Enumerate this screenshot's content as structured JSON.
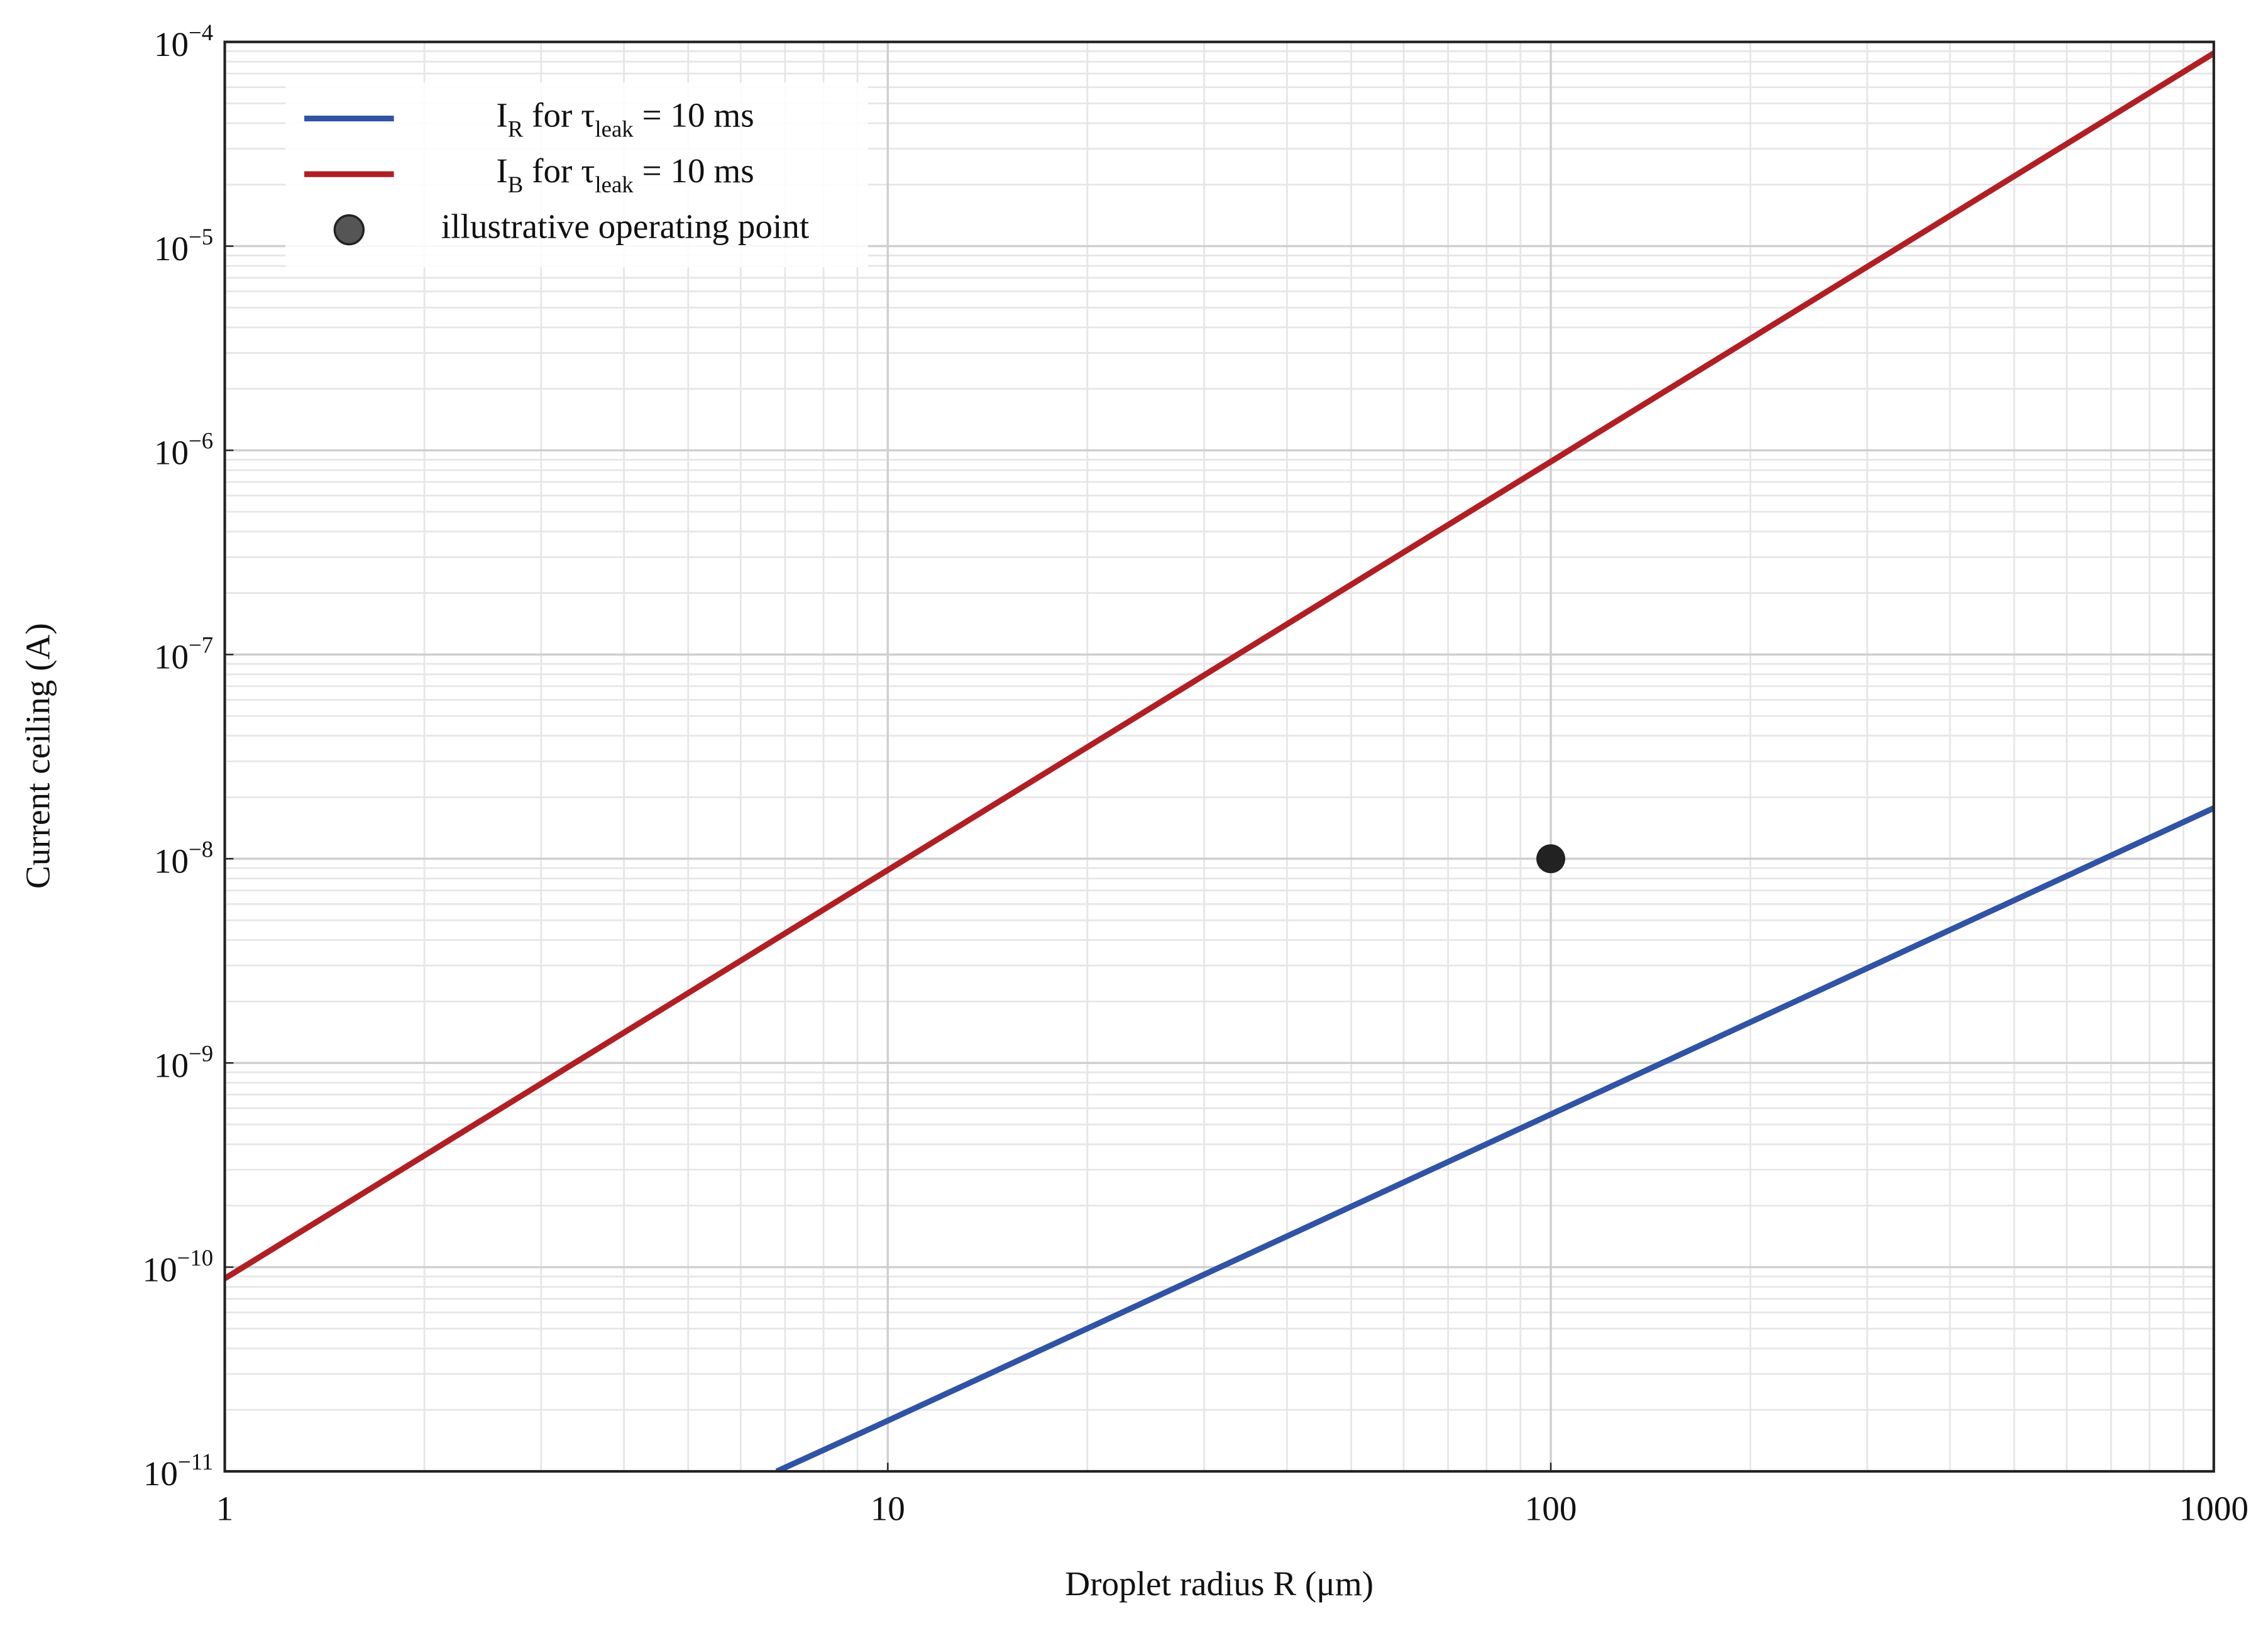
{
  "chart_data": {
    "type": "line",
    "xlabel": "Droplet radius R (μm)",
    "ylabel": "Current ceiling (A)",
    "xscale": "log",
    "yscale": "log",
    "xlim": [
      1,
      1000
    ],
    "xticks": [
      1,
      10,
      100,
      1000
    ],
    "ylim": [
      1e-11,
      0.0001
    ],
    "yticks": [
      {
        "value": 1e-11,
        "label": "10^{−11}"
      },
      {
        "value": 1e-10,
        "label": "10^{−10}"
      },
      {
        "value": 1e-09,
        "label": "10^{−9}"
      },
      {
        "value": 1e-08,
        "label": "10^{−8}"
      },
      {
        "value": 1e-07,
        "label": "10^{−7}"
      },
      {
        "value": 1e-06,
        "label": "10^{−6}"
      },
      {
        "value": 1e-05,
        "label": "10^{−5}"
      },
      {
        "value": 0.0001,
        "label": "10^{−4}"
      }
    ],
    "grid": true,
    "minor_grid": true,
    "legend": "upper left",
    "series": [
      {
        "name": "I_{R} for τ_{leak} = 10 ms",
        "color": "#3153a5",
        "x": [
          6.8,
          10,
          100,
          1000
        ],
        "values": [
          1e-11,
          1.77e-11,
          5.6e-10,
          1.77e-08
        ]
      },
      {
        "name": "I_{B} for τ_{leak} = 10 ms",
        "color": "#b01f24",
        "x": [
          1,
          10,
          100,
          1000
        ],
        "values": [
          8.8e-11,
          8.8e-09,
          8.8e-07,
          8.8e-05
        ]
      },
      {
        "name": "illustrative operating point",
        "type": "scatter",
        "color": "#222222",
        "x": [
          100
        ],
        "values": [
          1e-08
        ]
      }
    ]
  }
}
